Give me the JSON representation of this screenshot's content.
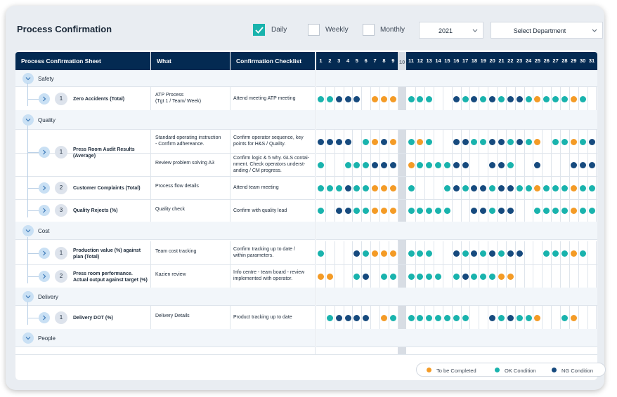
{
  "title": "Process Confirmation",
  "filters": {
    "daily": {
      "label": "Daily",
      "checked": true
    },
    "weekly": {
      "label": "Weekly",
      "checked": false
    },
    "monthly": {
      "label": "Monthly",
      "checked": false
    },
    "year": "2021",
    "department": "Select Department"
  },
  "columns": {
    "sheet": "Process Confirmation Sheet",
    "what": "What",
    "checklist": "Confirmation Checklist"
  },
  "days": [
    "1",
    "2",
    "3",
    "4",
    "5",
    "6",
    "7",
    "8",
    "9",
    "10",
    "11",
    "12",
    "13",
    "14",
    "15",
    "16",
    "17",
    "18",
    "19",
    "20",
    "21",
    "22",
    "23",
    "24",
    "25",
    "26",
    "27",
    "28",
    "29",
    "30",
    "31"
  ],
  "colors": {
    "to_be_completed": "#f49b26",
    "ok": "#19b3ad",
    "ng": "#164a7e",
    "header": "#042a52"
  },
  "sections": [
    {
      "name": "Safety"
    },
    {
      "name": "Quality"
    },
    {
      "name": "Cost"
    },
    {
      "name": "Delivery"
    },
    {
      "name": "People"
    }
  ],
  "rows": [
    {
      "num": "1",
      "name": "Zero Accidents (Total)",
      "what": "ATP Process\n(Tgt 1 / Team/ Week)",
      "check": "Attend meeting ATP meeting",
      "status": "O,O,N,N,N,-,T,T,T,X,O,O,O,-,-,N,O,N,O,N,O,N,N,O,T,O,O,O,T,O,-"
    },
    {
      "num": "1",
      "name": "Press Room Audit Results\n(Average)",
      "what": "Standard operating instruction\n- Confirm adhereance.",
      "check": "Confirm operator sequence, key\npoints for H&S / Quality.",
      "status": "N,N,N,N,-,O,T,N,T,X,O,T,O,-,-,N,N,O,O,N,N,O,N,O,T,-,O,O,T,O,N"
    },
    {
      "num": "",
      "name": "",
      "what": "Review problem solving A3",
      "check": "Confirm logic & 5 why. GLS contai-\nnment. Check operators underst-\nanding / CM progress.",
      "status": "O,-,-,O,O,O,N,N,N,X,T,O,O,O,O,N,N,-,-,N,N,O,-,-,N,-,-,-,N,N,N"
    },
    {
      "num": "2",
      "name": "Customer Complaints (Total)",
      "what": "Process flow details",
      "check": "Attend team meeting",
      "status": "O,O,O,N,O,O,T,T,T,X,O,-,-,-,O,N,O,N,N,O,N,N,O,O,T,O,O,O,T,O,O"
    },
    {
      "num": "3",
      "name": "Quality Rejects (%)",
      "what": "Quality check",
      "check": "Confirm with quality lead",
      "status": "O,-,N,N,O,O,T,T,T,X,O,O,O,O,O,-,-,N,N,O,N,N,-,-,O,O,O,O,T,O,O"
    },
    {
      "num": "1",
      "name": "Production value (%) against\nplan (Total)",
      "what": "Team cost tracking",
      "check": "Confirm tracking up to date /\nwithin parameters.",
      "status": "O,-,-,-,N,O,T,T,T,X,O,O,O,-,-,N,O,N,O,N,O,N,N,-,-,O,O,O,T,O,-"
    },
    {
      "num": "2",
      "name": "Press room performance.\nActual output against target (%)",
      "what": "Kazien review",
      "check": "Info centre - team board - review\nimplemented with operator.",
      "status": "T,T,-,-,O,N,-,O,O,X,O,O,O,O,-,O,N,O,O,O,T,T,-,-,-,-,-,-,-,-,-"
    },
    {
      "num": "1",
      "name": "Delivery DOT (%)",
      "what": "Delivery Details",
      "check": "Product tracking up to date",
      "status": "-,O,N,N,N,N,-,T,O,X,O,O,O,O,O,O,O,-,-,N,O,N,O,O,T,-,-,O,T,-,-"
    }
  ],
  "legend": {
    "to_be_completed": "To be Completed",
    "ok": "OK Condition",
    "ng": "NG Condition"
  }
}
